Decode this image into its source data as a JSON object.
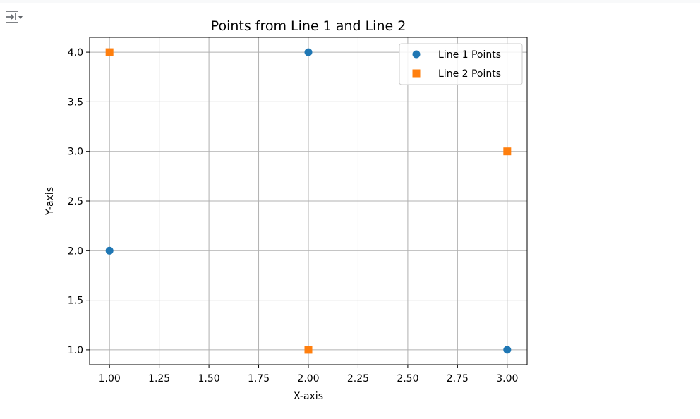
{
  "output_toggle": {
    "icon": "output-collapse-icon"
  },
  "colors": {
    "series1": "#1f77b4",
    "series2": "#ff7f0e",
    "grid": "#b0b0b0",
    "axis": "#000000"
  },
  "chart_data": {
    "type": "scatter",
    "title": "Points from Line 1 and Line 2",
    "xlabel": "X-axis",
    "ylabel": "Y-axis",
    "xlim": [
      0.9,
      3.1
    ],
    "ylim": [
      0.85,
      4.15
    ],
    "xticks": [
      1.0,
      1.25,
      1.5,
      1.75,
      2.0,
      2.25,
      2.5,
      2.75,
      3.0
    ],
    "xtick_labels": [
      "1.00",
      "1.25",
      "1.50",
      "1.75",
      "2.00",
      "2.25",
      "2.50",
      "2.75",
      "3.00"
    ],
    "yticks": [
      1.0,
      1.5,
      2.0,
      2.5,
      3.0,
      3.5,
      4.0
    ],
    "ytick_labels": [
      "1.0",
      "1.5",
      "2.0",
      "2.5",
      "3.0",
      "3.5",
      "4.0"
    ],
    "grid": true,
    "legend": "top-right",
    "series": [
      {
        "name": "Line 1 Points",
        "marker": "circle",
        "color": "#1f77b4",
        "points": [
          {
            "x": 1,
            "y": 2
          },
          {
            "x": 2,
            "y": 4
          },
          {
            "x": 3,
            "y": 1
          }
        ]
      },
      {
        "name": "Line 2 Points",
        "marker": "square",
        "color": "#ff7f0e",
        "points": [
          {
            "x": 1,
            "y": 4
          },
          {
            "x": 2,
            "y": 1
          },
          {
            "x": 3,
            "y": 3
          }
        ]
      }
    ]
  }
}
